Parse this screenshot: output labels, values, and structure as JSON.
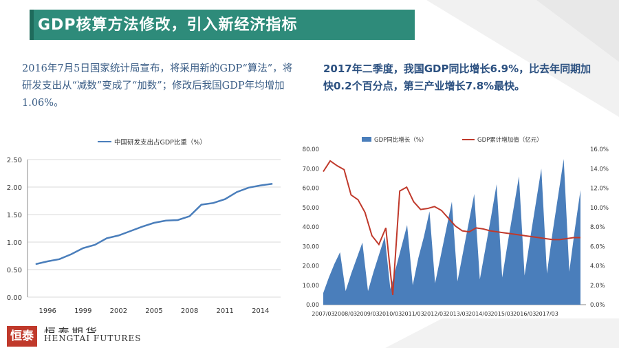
{
  "slide": {
    "title": "GDP核算方法修改，引入新经济指标",
    "para_left": "2016年7月5日国家统计局宣布，将采用新的GDP“算法”，将研发支出从“减数”变成了“加数”；修改后我国GDP年均增加1.06%。",
    "para_right": "2017年二季度，我国GDP同比增长6.9%，比去年同期加快0.2个百分点，第三产业增长7.8%最快。",
    "logo_text_cn": "恒泰期货",
    "logo_text_en": "HENGTAI FUTURES",
    "logo_mark": "恒泰"
  },
  "colors": {
    "title_bg": "#2e8b7a",
    "line_blue": "#4a7ebb",
    "area_blue": "#4a7ebb",
    "line_red": "#c0392b"
  },
  "chart_data": [
    {
      "type": "line",
      "legend": "中国研发支出占GDP比重（%）",
      "x_ticks": [
        "1996",
        "1999",
        "2002",
        "2005",
        "2008",
        "2011",
        "2014"
      ],
      "y_ticks": [
        "0.00",
        "0.50",
        "1.00",
        "1.50",
        "2.00",
        "2.50"
      ],
      "ylim": [
        0,
        2.5
      ],
      "x": [
        1995,
        1996,
        1997,
        1998,
        1999,
        2000,
        2001,
        2002,
        2003,
        2004,
        2005,
        2006,
        2007,
        2008,
        2009,
        2010,
        2011,
        2012,
        2013,
        2014,
        2015
      ],
      "values": [
        0.6,
        0.65,
        0.69,
        0.78,
        0.89,
        0.95,
        1.07,
        1.12,
        1.2,
        1.28,
        1.35,
        1.39,
        1.4,
        1.47,
        1.68,
        1.71,
        1.78,
        1.91,
        1.99,
        2.03,
        2.06
      ],
      "grid": true
    },
    {
      "type": "area+line",
      "x_ticks": [
        "2007/03",
        "2008/03",
        "2009/03",
        "2010/03",
        "2011/03",
        "2012/03",
        "2013/03",
        "2014/03",
        "2015/03",
        "2016/03",
        "2017/03"
      ],
      "y_left_ticks": [
        "0.00",
        "10.00",
        "20.00",
        "30.00",
        "40.00",
        "50.00",
        "60.00",
        "70.00",
        "80.00"
      ],
      "y_right_ticks": [
        "0.0%",
        "2.0%",
        "4.0%",
        "6.0%",
        "8.0%",
        "10.0%",
        "12.0%",
        "14.0%",
        "16.0%"
      ],
      "ylim_left": [
        0,
        80
      ],
      "ylim_right": [
        0,
        16
      ],
      "series": [
        {
          "name": "GDP累计增加值（亿元）",
          "axis": "left",
          "kind": "area",
          "values": [
            6,
            14,
            21,
            27,
            7,
            16,
            24,
            32,
            7,
            17,
            26,
            35,
            8,
            19,
            30,
            41,
            10,
            24,
            35,
            48,
            11,
            25,
            39,
            53,
            12,
            27,
            42,
            57,
            13,
            29,
            45,
            62,
            14,
            32,
            49,
            66,
            15,
            34,
            52,
            70,
            16,
            37,
            56,
            75,
            17,
            39,
            59
          ]
        },
        {
          "name": "GDP同比增长（%）",
          "axis": "right",
          "kind": "line",
          "values": [
            13.7,
            14.8,
            14.3,
            13.9,
            11.3,
            10.8,
            9.5,
            7.1,
            6.2,
            7.9,
            1.0,
            11.7,
            12.1,
            10.6,
            9.8,
            9.9,
            10.1,
            9.7,
            8.9,
            8.1,
            7.6,
            7.5,
            7.9,
            7.8,
            7.6,
            7.5,
            7.4,
            7.3,
            7.2,
            7.1,
            7.0,
            6.9,
            6.8,
            6.7,
            6.7,
            6.8,
            6.9,
            6.9
          ]
        }
      ],
      "grid": false
    }
  ]
}
